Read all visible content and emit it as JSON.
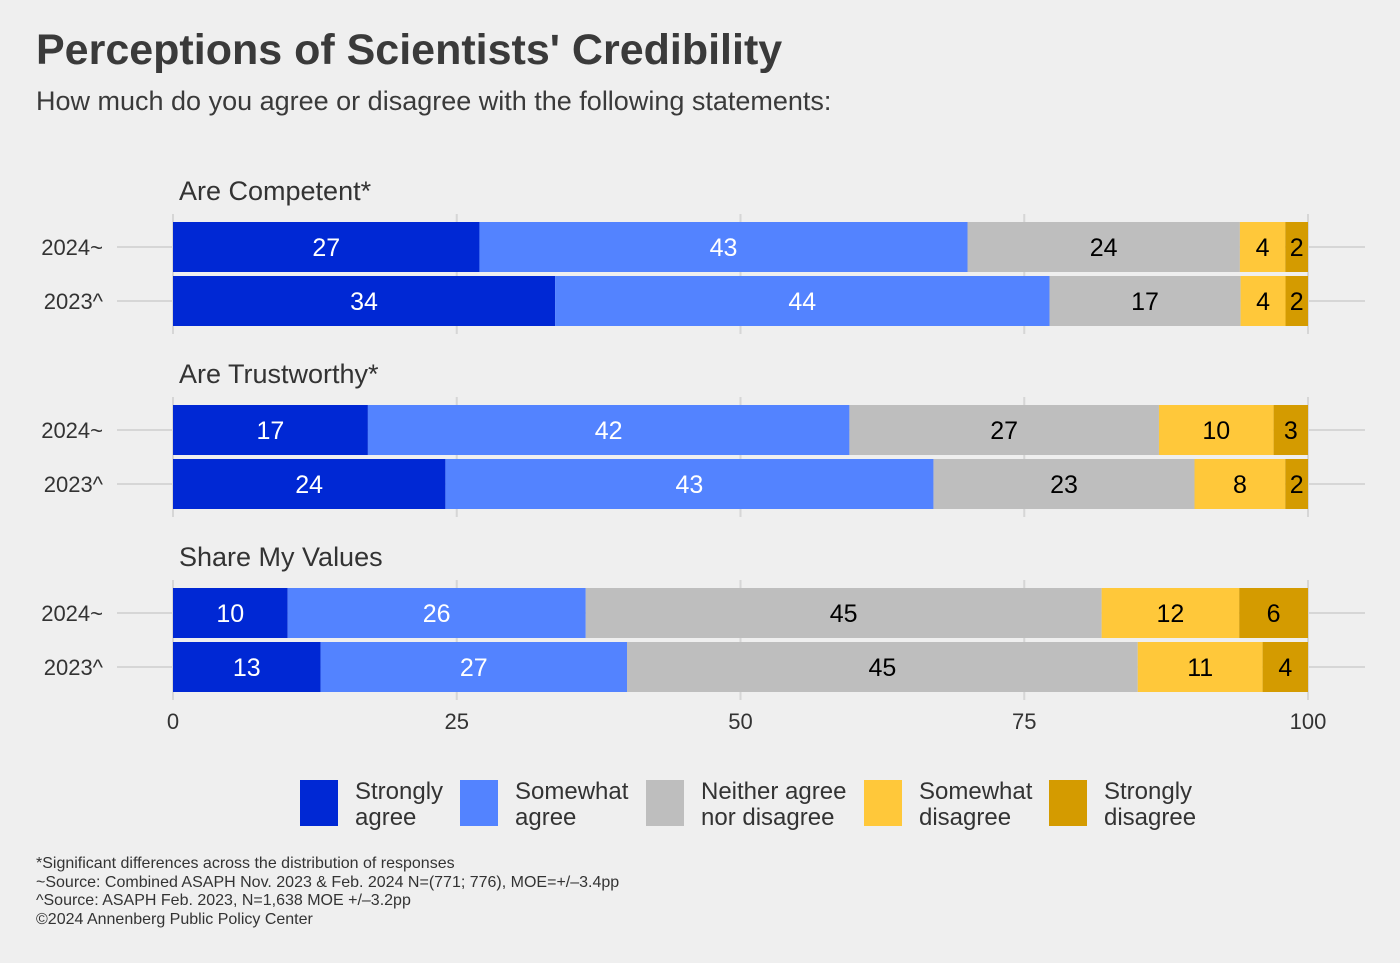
{
  "chart_data": {
    "type": "bar",
    "orientation": "horizontal-stacked",
    "title": "Perceptions of Scientists' Credibility",
    "subtitle": "How much do you agree or disagree with the following statements:",
    "xlim": [
      0,
      100
    ],
    "x_ticks": [
      "0",
      "25",
      "50",
      "75",
      "100"
    ],
    "grid": true,
    "legend_placement": "bottom",
    "series": [
      {
        "name": "Strongly agree",
        "label_lines": [
          "Strongly",
          "agree"
        ],
        "color": "#0028d4",
        "text_color": "#ffffff"
      },
      {
        "name": "Somewhat agree",
        "label_lines": [
          "Somewhat",
          "agree"
        ],
        "color": "#5383ff",
        "text_color": "#ffffff"
      },
      {
        "name": "Neither agree nor disagree",
        "label_lines": [
          "Neither agree",
          "nor disagree"
        ],
        "color": "#bebebe",
        "text_color": "#000000"
      },
      {
        "name": "Somewhat disagree",
        "label_lines": [
          "Somewhat",
          "disagree"
        ],
        "color": "#ffc83a",
        "text_color": "#000000"
      },
      {
        "name": "Strongly disagree",
        "label_lines": [
          "Strongly",
          "disagree"
        ],
        "color": "#d49b00",
        "text_color": "#000000"
      }
    ],
    "panels": [
      {
        "title": "Are Competent*",
        "rows": [
          {
            "label": "2024~",
            "values": [
              27,
              43,
              24,
              4,
              2
            ]
          },
          {
            "label": "2023^",
            "values": [
              34,
              44,
              17,
              4,
              2
            ]
          }
        ]
      },
      {
        "title": "Are Trustworthy*",
        "rows": [
          {
            "label": "2024~",
            "values": [
              17,
              42,
              27,
              10,
              3
            ]
          },
          {
            "label": "2023^",
            "values": [
              24,
              43,
              23,
              8,
              2
            ]
          }
        ]
      },
      {
        "title": "Share My Values",
        "rows": [
          {
            "label": "2024~",
            "values": [
              10,
              26,
              45,
              12,
              6
            ]
          },
          {
            "label": "2023^",
            "values": [
              13,
              27,
              45,
              11,
              4
            ]
          }
        ]
      }
    ]
  },
  "footnotes": [
    "*Significant differences across the distribution of responses",
    "~Source: Combined ASAPH Nov. 2023 & Feb. 2024 N=(771; 776), MOE=+/–3.4pp",
    "^Source: ASAPH Feb. 2023, N=1,638 MOE +/–3.2pp",
    "©2024 Annenberg Public Policy Center"
  ]
}
